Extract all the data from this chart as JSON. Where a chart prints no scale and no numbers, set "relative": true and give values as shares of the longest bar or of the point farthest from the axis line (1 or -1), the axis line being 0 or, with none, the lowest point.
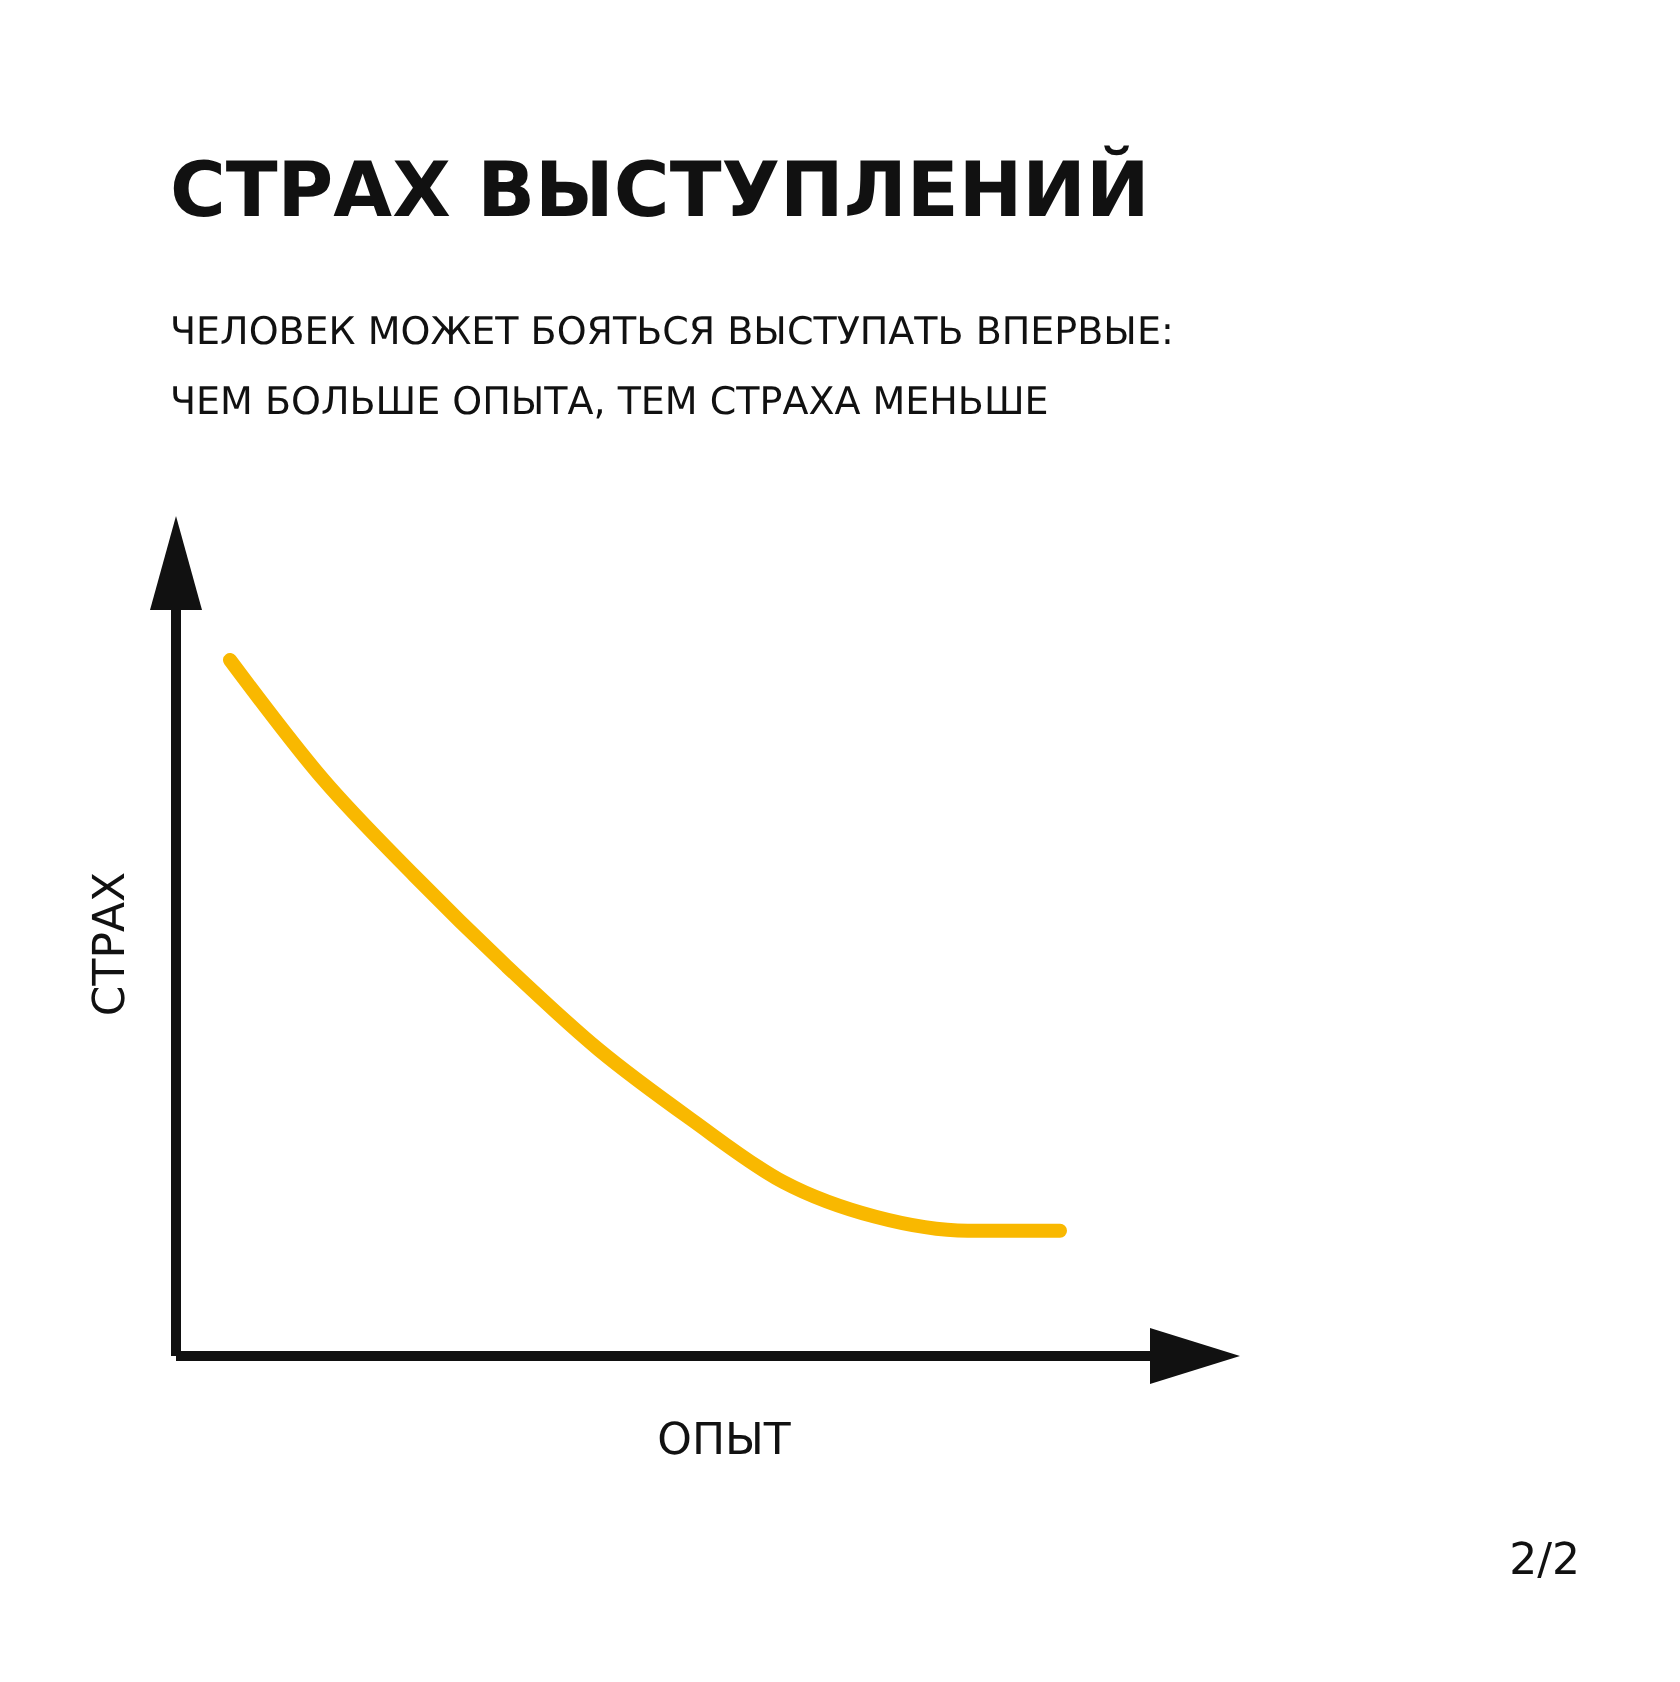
{
  "chart_data": {
    "type": "line",
    "title": "СТРАХ ВЫСТУПЛЕНИЙ",
    "subtitle": "ЧЕЛОВЕК МОЖЕТ БОЯТЬСЯ ВЫСТУПАТЬ ВПЕРВЫЕ:\nЧЕМ БОЛЬШЕ ОПЫТА, ТЕМ СТРАХА МЕНЬШЕ",
    "xlabel": "ОПЫТ",
    "ylabel": "СТРАХ",
    "annotations": [
      "2/2"
    ],
    "relative": true,
    "categories": [
      null,
      null,
      null,
      null,
      null,
      null,
      null,
      null,
      null,
      null
    ],
    "series": [
      {
        "color": "#f9b800",
        "values": [
          1,
          0.83,
          0.69,
          0.56,
          0.44,
          0.34,
          0.25,
          0.2,
          0.18,
          0.18
        ]
      }
    ],
    "line_style": "solid"
  }
}
